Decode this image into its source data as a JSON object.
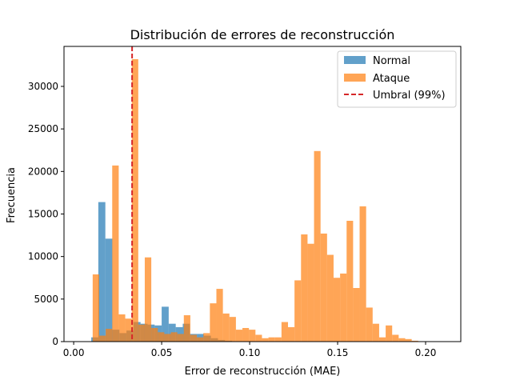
{
  "chart_data": {
    "type": "histogram",
    "title": "Distribución de errores de reconstrucción",
    "xlabel": "Error de reconstrucción (MAE)",
    "ylabel": "Frecuencia",
    "xlim": [
      -0.0055,
      0.22
    ],
    "ylim": [
      0,
      34700
    ],
    "xticks": [
      0.0,
      0.05,
      0.1,
      0.15,
      0.2
    ],
    "xtick_labels": [
      "0.00",
      "0.05",
      "0.10",
      "0.15",
      "0.20"
    ],
    "yticks": [
      0,
      5000,
      10000,
      15000,
      20000,
      25000,
      30000
    ],
    "ytick_labels": [
      "0",
      "5000",
      "10000",
      "15000",
      "20000",
      "25000",
      "30000"
    ],
    "grid": false,
    "legend_position": "top-right",
    "series": [
      {
        "name": "Normal",
        "color": "#1f77b4",
        "opacity": 0.7,
        "bins": [
          [
            0.01,
            0.014,
            500
          ],
          [
            0.014,
            0.018,
            16400
          ],
          [
            0.018,
            0.022,
            12100
          ],
          [
            0.022,
            0.026,
            1400
          ],
          [
            0.026,
            0.03,
            1000
          ],
          [
            0.03,
            0.034,
            1300
          ],
          [
            0.034,
            0.038,
            2300
          ],
          [
            0.038,
            0.042,
            2100
          ],
          [
            0.042,
            0.046,
            2000
          ],
          [
            0.046,
            0.05,
            1900
          ],
          [
            0.05,
            0.054,
            4100
          ],
          [
            0.054,
            0.058,
            2100
          ],
          [
            0.058,
            0.062,
            1700
          ],
          [
            0.062,
            0.066,
            2100
          ],
          [
            0.066,
            0.07,
            900
          ],
          [
            0.07,
            0.074,
            900
          ],
          [
            0.074,
            0.078,
            700
          ],
          [
            0.078,
            0.082,
            400
          ],
          [
            0.082,
            0.086,
            200
          ],
          [
            0.086,
            0.09,
            100
          ]
        ]
      },
      {
        "name": "Ataque",
        "color": "#ff7f0e",
        "opacity": 0.7,
        "bins": [
          [
            0.0108,
            0.0145,
            7900
          ],
          [
            0.0145,
            0.0182,
            700
          ],
          [
            0.0182,
            0.0219,
            1500
          ],
          [
            0.0219,
            0.0256,
            20700
          ],
          [
            0.0256,
            0.0293,
            3200
          ],
          [
            0.0293,
            0.033,
            2700
          ],
          [
            0.033,
            0.0367,
            33200
          ],
          [
            0.0367,
            0.0404,
            2000
          ],
          [
            0.0404,
            0.0441,
            9900
          ],
          [
            0.0441,
            0.0478,
            1600
          ],
          [
            0.0478,
            0.0515,
            1100
          ],
          [
            0.0515,
            0.0552,
            900
          ],
          [
            0.0552,
            0.0589,
            1100
          ],
          [
            0.0589,
            0.0626,
            900
          ],
          [
            0.0626,
            0.0663,
            3100
          ],
          [
            0.0663,
            0.07,
            800
          ],
          [
            0.07,
            0.0737,
            500
          ],
          [
            0.0737,
            0.0774,
            1000
          ],
          [
            0.0774,
            0.0811,
            4500
          ],
          [
            0.0811,
            0.0848,
            6200
          ],
          [
            0.0848,
            0.0885,
            3300
          ],
          [
            0.0885,
            0.0922,
            2900
          ],
          [
            0.0922,
            0.0959,
            1400
          ],
          [
            0.0959,
            0.0996,
            1600
          ],
          [
            0.0996,
            0.1033,
            1400
          ],
          [
            0.1033,
            0.107,
            800
          ],
          [
            0.107,
            0.1107,
            400
          ],
          [
            0.1107,
            0.1144,
            500
          ],
          [
            0.1144,
            0.1181,
            500
          ],
          [
            0.1181,
            0.1218,
            2300
          ],
          [
            0.1218,
            0.1255,
            1700
          ],
          [
            0.1255,
            0.1292,
            7200
          ],
          [
            0.1292,
            0.1329,
            12600
          ],
          [
            0.1329,
            0.1366,
            11500
          ],
          [
            0.1366,
            0.1403,
            22400
          ],
          [
            0.1403,
            0.144,
            12700
          ],
          [
            0.144,
            0.1477,
            10200
          ],
          [
            0.1477,
            0.1514,
            7500
          ],
          [
            0.1514,
            0.1551,
            8000
          ],
          [
            0.1551,
            0.1588,
            14200
          ],
          [
            0.1588,
            0.1625,
            6300
          ],
          [
            0.1625,
            0.1662,
            15900
          ],
          [
            0.1662,
            0.1699,
            4000
          ],
          [
            0.1699,
            0.1736,
            2100
          ],
          [
            0.1736,
            0.1773,
            500
          ],
          [
            0.1773,
            0.181,
            1900
          ],
          [
            0.181,
            0.1847,
            800
          ],
          [
            0.1847,
            0.1884,
            400
          ],
          [
            0.1884,
            0.1921,
            300
          ],
          [
            0.1921,
            0.1958,
            100
          ]
        ]
      }
    ],
    "threshold": {
      "name": "Umbral (99%)",
      "x": 0.0332,
      "color": "#d62728",
      "style": "dashed"
    }
  }
}
